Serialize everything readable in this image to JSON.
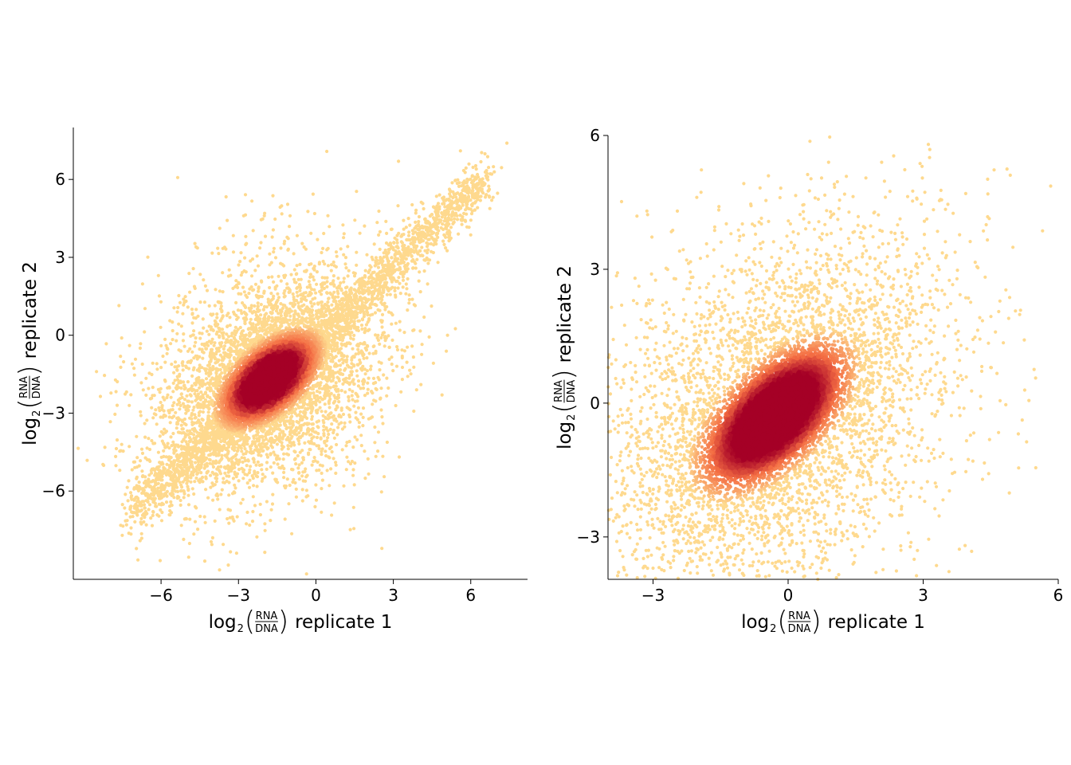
{
  "chart_data": [
    {
      "type": "scatter",
      "density_colored": true,
      "colors": {
        "low": "#fed98e",
        "mid": "#f46d43",
        "high": "#a50026"
      },
      "xlabel": {
        "prefix": "log",
        "subscript": "2",
        "numerator": "RNA",
        "denominator": "DNA",
        "suffix": "replicate 1"
      },
      "ylabel": {
        "prefix": "log",
        "subscript": "2",
        "numerator": "RNA",
        "denominator": "DNA",
        "suffix": "replicate 2"
      },
      "xlim": [
        -9.4,
        8.2
      ],
      "ylim": [
        -9.4,
        8.0
      ],
      "xticks": [
        -6,
        -3,
        0,
        3,
        6
      ],
      "xtick_labels": [
        "−6",
        "−3",
        "0",
        "3",
        "6"
      ],
      "yticks": [
        -6,
        -3,
        0,
        3,
        6
      ],
      "ytick_labels": [
        "−6",
        "−3",
        "0",
        "3",
        "6"
      ],
      "spines": [
        "left",
        "bottom"
      ],
      "core": {
        "x": -1.8,
        "y": -1.7,
        "sx": 0.75,
        "sy": 0.7,
        "rho": 0.55
      },
      "diagonal_tail": {
        "from": [
          -7.0,
          -6.8
        ],
        "to": [
          6.5,
          6.0
        ]
      },
      "outliers": [
        {
          "x": 7.4,
          "y": 7.4
        },
        {
          "x": 5.6,
          "y": 7.1
        },
        {
          "x": 3.2,
          "y": 6.7
        },
        {
          "x": 6.1,
          "y": 5.8
        },
        {
          "x": -2.8,
          "y": 4.6
        },
        {
          "x": -2.0,
          "y": 4.6
        },
        {
          "x": -1.0,
          "y": 4.6
        },
        {
          "x": 5.1,
          "y": 0.0
        },
        {
          "x": -8.5,
          "y": -1.4
        },
        {
          "x": -4.0,
          "y": -7.8
        },
        {
          "x": -7.2,
          "y": -6.7
        },
        {
          "x": -4.8,
          "y": 1.0
        }
      ]
    },
    {
      "type": "scatter",
      "density_colored": true,
      "colors": {
        "low": "#fed98e",
        "mid": "#f46d43",
        "high": "#a50026"
      },
      "xlabel": {
        "prefix": "log",
        "subscript": "2",
        "numerator": "RNA",
        "denominator": "DNA",
        "suffix": "replicate 1"
      },
      "ylabel": {
        "prefix": "log",
        "subscript": "2",
        "numerator": "RNA",
        "denominator": "DNA",
        "suffix": "replicate 2"
      },
      "xlim": [
        -4.0,
        6.0
      ],
      "ylim": [
        -3.95,
        6.0
      ],
      "xticks": [
        -3,
        0,
        3,
        6
      ],
      "xtick_labels": [
        "−3",
        "0",
        "3",
        "6"
      ],
      "yticks": [
        -3,
        0,
        3,
        6
      ],
      "ytick_labels": [
        "−3",
        "0",
        "3",
        "6"
      ],
      "spines": [
        "left",
        "bottom"
      ],
      "core": {
        "x": -0.3,
        "y": -0.3,
        "sx": 0.65,
        "sy": 0.65,
        "rho": 0.6
      },
      "outliers": [
        {
          "x": 0.9,
          "y": 5.4
        },
        {
          "x": 0.6,
          "y": 4.6
        },
        {
          "x": 4.4,
          "y": 4.0
        },
        {
          "x": 4.9,
          "y": 1.9
        },
        {
          "x": -3.8,
          "y": -2.5
        },
        {
          "x": -3.0,
          "y": -3.7
        },
        {
          "x": -1.3,
          "y": -3.85
        },
        {
          "x": 2.5,
          "y": -3.2
        },
        {
          "x": -3.4,
          "y": 2.8
        },
        {
          "x": 4.5,
          "y": 0.8
        }
      ]
    }
  ]
}
